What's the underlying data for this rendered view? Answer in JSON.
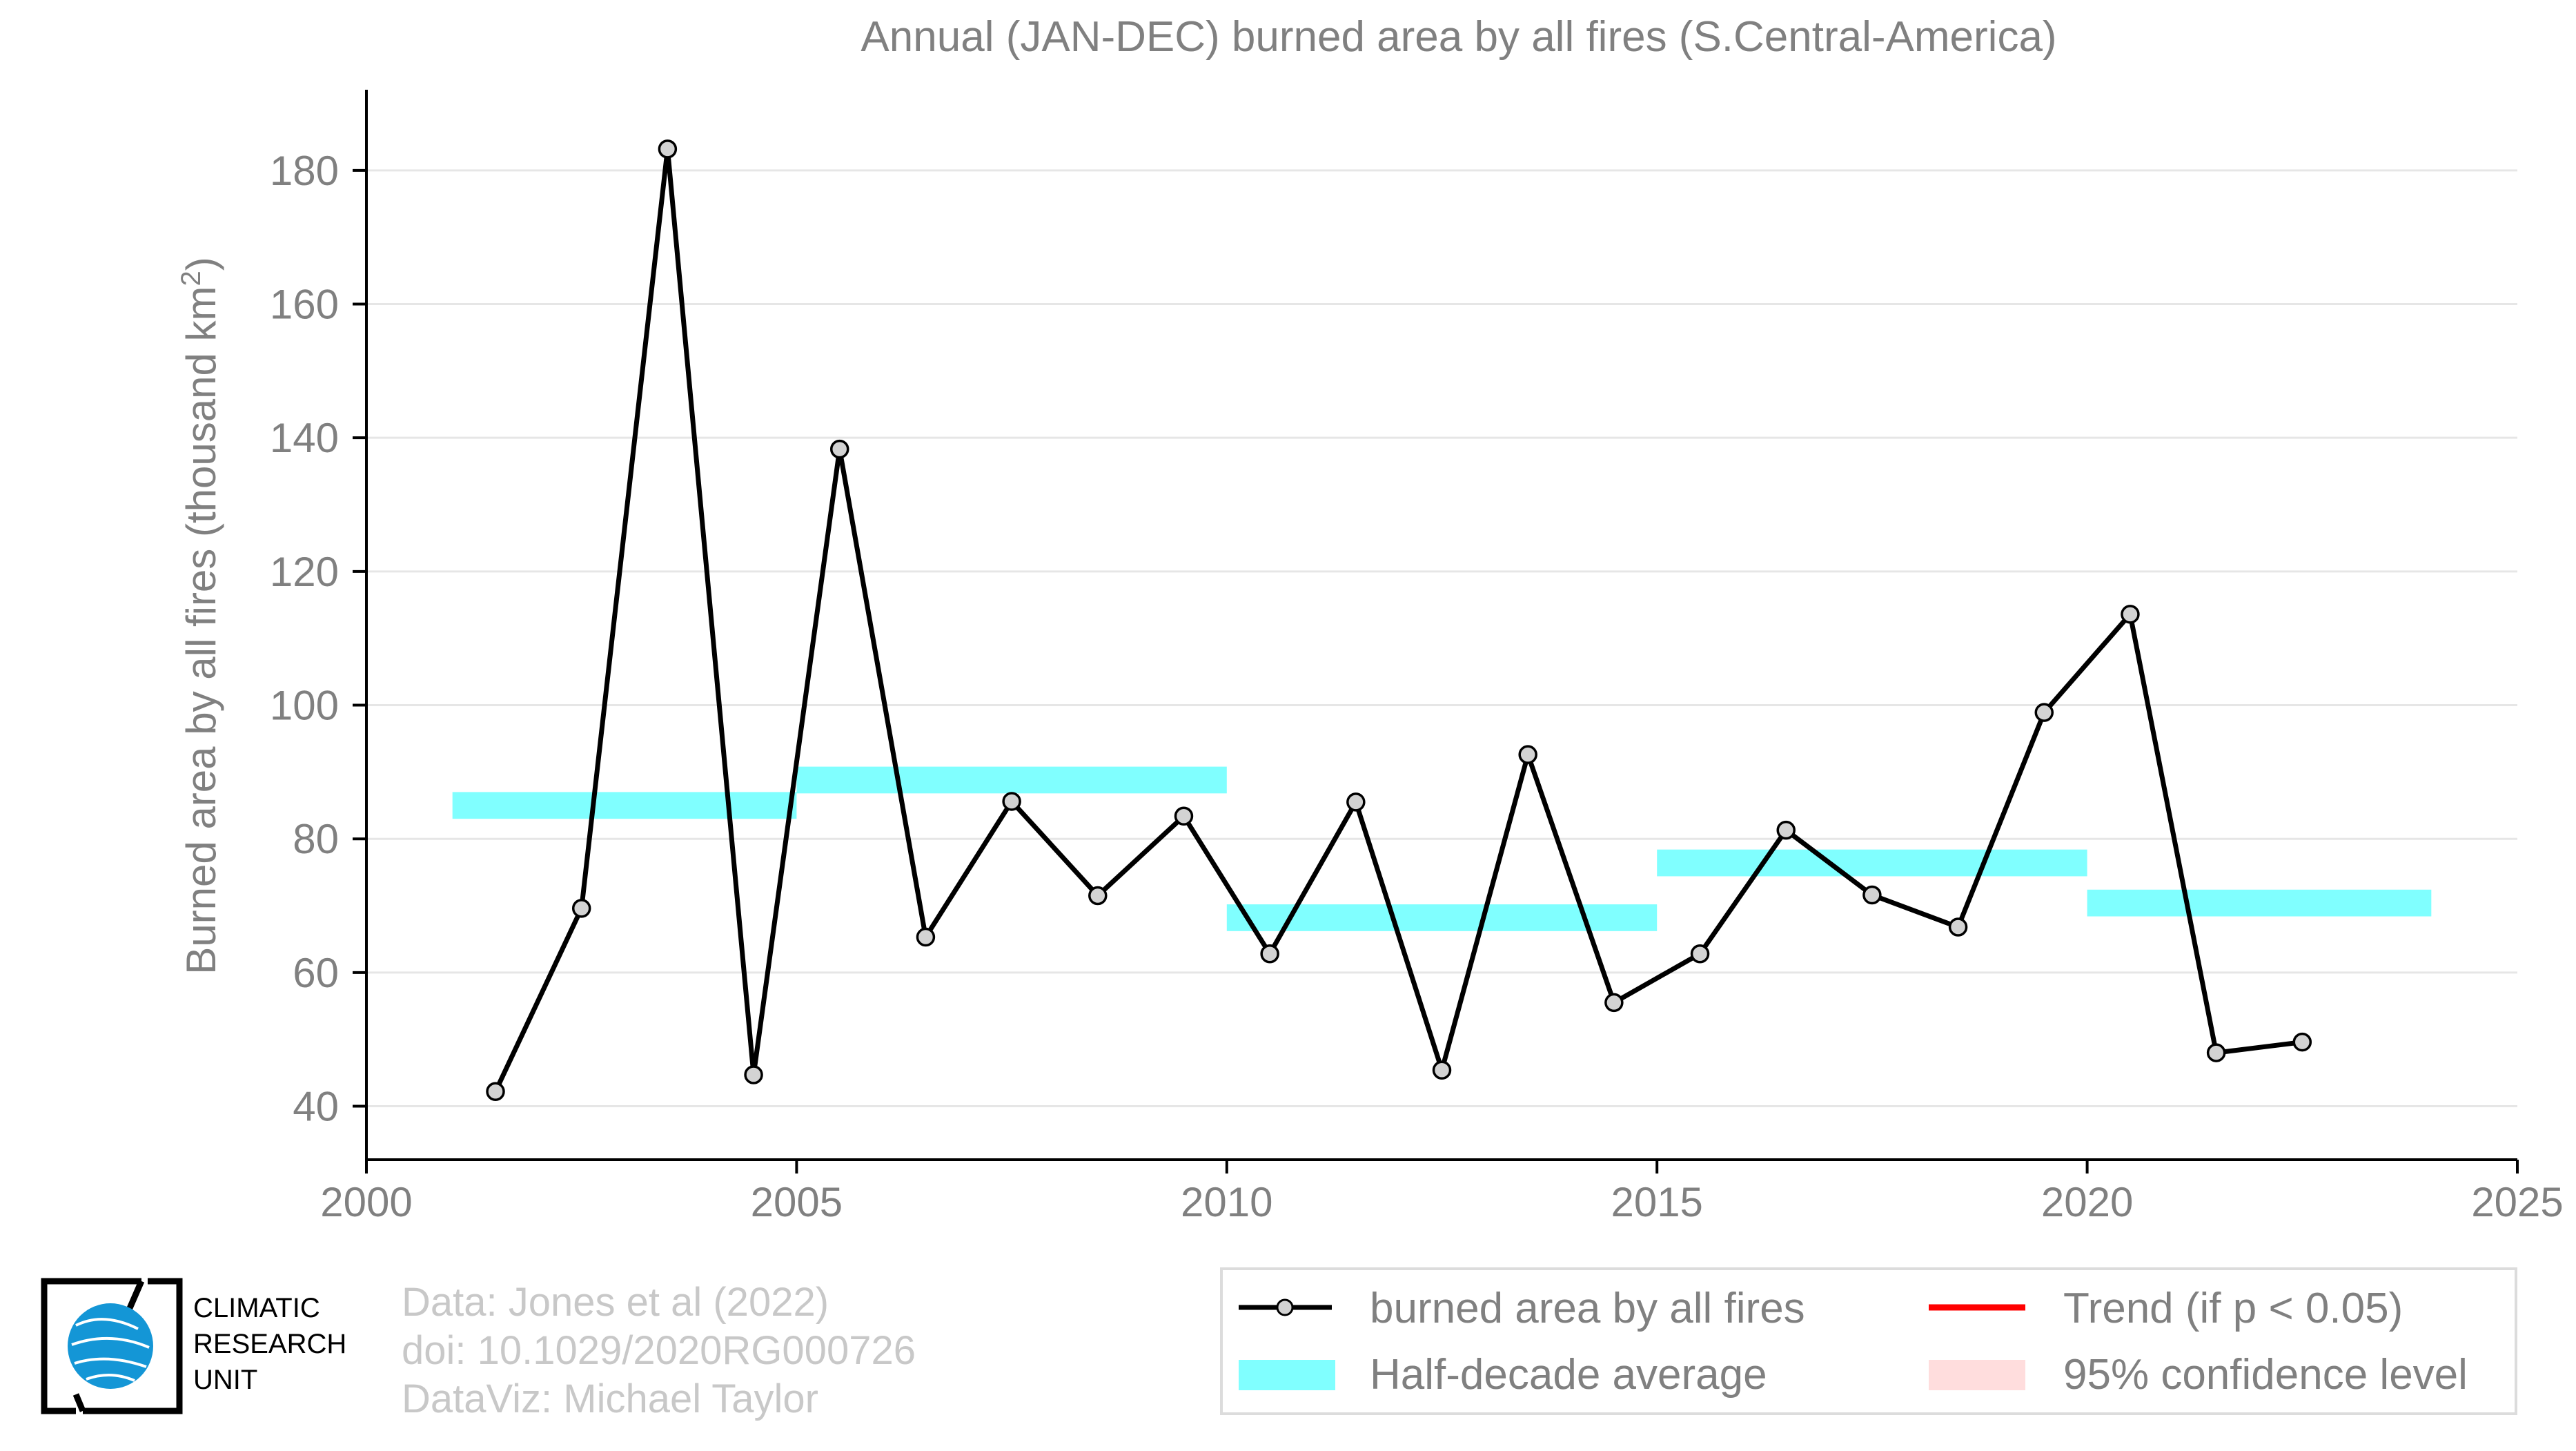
{
  "chart_data": {
    "type": "line",
    "title": "Annual (JAN-DEC) burned area by all fires (S.Central-America)",
    "ylabel_main": "Burned area by all fires (thousand km",
    "ylabel_sup": "2",
    "ylabel_close": ")",
    "xlabel": "",
    "xlim": [
      2000,
      2025
    ],
    "ylim": [
      32,
      190
    ],
    "x_ticks": [
      2000,
      2005,
      2010,
      2015,
      2020,
      2025
    ],
    "y_ticks": [
      40,
      60,
      80,
      100,
      120,
      140,
      160,
      180
    ],
    "grid": "horizontal",
    "legend_position": "bottom-right",
    "series": [
      {
        "name": "burned area by all fires",
        "type": "line",
        "color": "#000000",
        "marker_fill": "#d3d3d3",
        "x": [
          2001.5,
          2002.5,
          2003.5,
          2004.5,
          2005.5,
          2006.5,
          2007.5,
          2008.5,
          2009.5,
          2010.5,
          2011.5,
          2012.5,
          2013.5,
          2014.5,
          2015.5,
          2016.5,
          2017.5,
          2018.5,
          2019.5,
          2020.5,
          2021.5,
          2022.5
        ],
        "y": [
          42.2,
          69.6,
          183.2,
          44.7,
          138.3,
          65.3,
          85.6,
          71.5,
          83.4,
          62.8,
          85.5,
          45.4,
          92.6,
          55.5,
          62.8,
          81.3,
          71.6,
          66.8,
          98.9,
          113.6,
          48.0,
          49.6
        ]
      },
      {
        "name": "Half-decade average",
        "type": "step",
        "color": "#80ffff",
        "segments": [
          {
            "x0": 2001,
            "x1": 2005,
            "y": 85.0
          },
          {
            "x0": 2005,
            "x1": 2010,
            "y": 88.8
          },
          {
            "x0": 2010,
            "x1": 2015,
            "y": 68.2
          },
          {
            "x0": 2015,
            "x1": 2020,
            "y": 76.4
          },
          {
            "x0": 2020,
            "x1": 2024,
            "y": 70.4
          }
        ]
      }
    ],
    "legend": [
      {
        "label": "burned area by all fires",
        "kind": "line-marker",
        "color": "#000000"
      },
      {
        "label": "Trend (if p < 0.05)",
        "kind": "line",
        "color": "#ff0000"
      },
      {
        "label": "Half-decade average",
        "kind": "patch",
        "color": "#80ffff"
      },
      {
        "label": "95% confidence level",
        "kind": "patch",
        "color": "#ffdddd"
      }
    ]
  },
  "credits": {
    "line1": "Data: Jones et al (2022)",
    "line2": "doi: 10.1029/2020RG000726",
    "line3": "DataViz: Michael Taylor"
  },
  "logo": {
    "line1": "CLIMATIC",
    "line2": "RESEARCH",
    "line3": "UNIT"
  }
}
